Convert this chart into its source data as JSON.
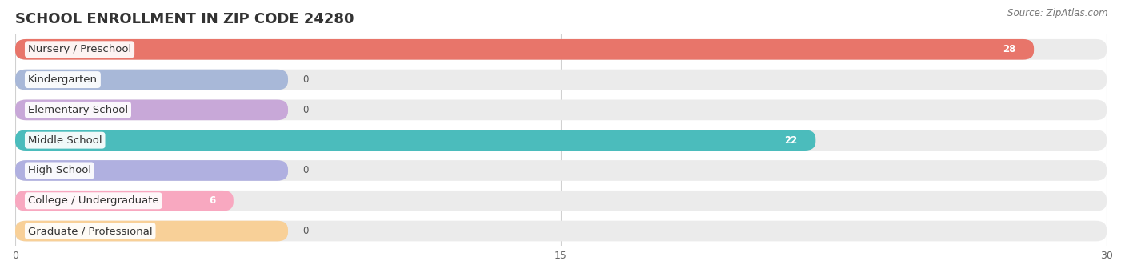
{
  "title": "SCHOOL ENROLLMENT IN ZIP CODE 24280",
  "source": "Source: ZipAtlas.com",
  "categories": [
    "Nursery / Preschool",
    "Kindergarten",
    "Elementary School",
    "Middle School",
    "High School",
    "College / Undergraduate",
    "Graduate / Professional"
  ],
  "values": [
    28,
    0,
    0,
    22,
    0,
    6,
    0
  ],
  "bar_colors": [
    "#E8756A",
    "#A8B8D8",
    "#C8A8D8",
    "#4BBCBC",
    "#B0B0E0",
    "#F8A8C0",
    "#F8D098"
  ],
  "bg_color": "#EBEBEB",
  "xlim": [
    0,
    30
  ],
  "xticks": [
    0,
    15,
    30
  ],
  "background_color": "#ffffff",
  "title_fontsize": 13,
  "label_fontsize": 9.5,
  "value_fontsize": 8.5,
  "zero_bar_width": 7.5
}
